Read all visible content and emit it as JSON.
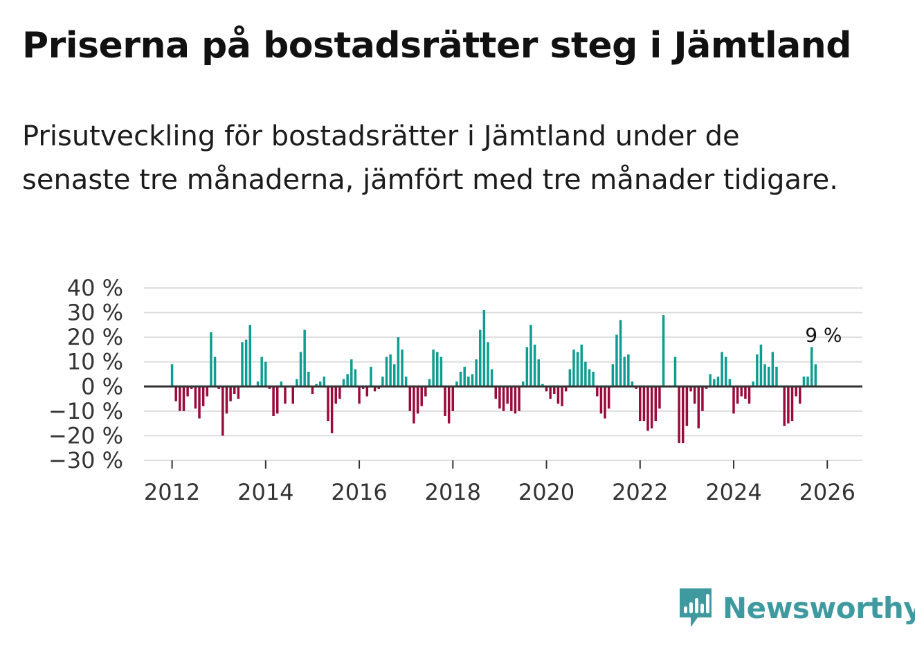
{
  "title": "Priserna på bostadsrätter steg i Jämtland",
  "subtitle": "Prisutveckling för bostadsrätter i Jämtland under de senaste tre månaderna, jämfört med tre månader tidigare.",
  "brand": {
    "name": "Newsworthy",
    "icon": "newsworthy-logo-icon",
    "color": "#3f9aa0"
  },
  "colors": {
    "positive": "#0e9d91",
    "negative": "#9c0a3c",
    "grid": "#dddddd",
    "zero": "#333333"
  },
  "chart_data": {
    "type": "bar",
    "title": "Priserna på bostadsrätter steg i Jämtland",
    "xlabel": "",
    "ylabel": "",
    "ylim": [
      -30,
      40
    ],
    "xlim": [
      2011.4,
      2026.75
    ],
    "grid": true,
    "y_ticks": [
      40,
      30,
      20,
      10,
      0,
      -10,
      -20,
      -30
    ],
    "y_tick_labels": [
      "40 %",
      "30 %",
      "20 %",
      "10 %",
      "0 %",
      "−10 %",
      "−20 %",
      "−30 %"
    ],
    "x_ticks": [
      2012,
      2014,
      2016,
      2018,
      2020,
      2022,
      2024,
      2026
    ],
    "x_tick_labels": [
      "2012",
      "2014",
      "2016",
      "2018",
      "2020",
      "2022",
      "2024",
      "2026"
    ],
    "start": 2012.0,
    "step": 0.08333,
    "values": [
      9,
      -6,
      -10,
      -10,
      -4,
      -1,
      -9,
      -13,
      -8,
      -4,
      22,
      12,
      -1,
      -20,
      -11,
      -6,
      -3,
      -5,
      18,
      19,
      25,
      0,
      2,
      12,
      10,
      -1,
      -12,
      -11,
      2,
      -7,
      0,
      -7,
      3,
      14,
      23,
      6,
      -3,
      1,
      2,
      4,
      -14,
      -19,
      -7,
      -5,
      3,
      5,
      11,
      7,
      -7,
      -1,
      -4,
      8,
      -2,
      -1,
      4,
      12,
      13,
      9,
      20,
      15,
      4,
      -10,
      -15,
      -11,
      -8,
      -4,
      3,
      15,
      14,
      12,
      -12,
      -15,
      -10,
      2,
      6,
      8,
      4,
      5,
      11,
      23,
      31,
      18,
      7,
      -5,
      -9,
      -10,
      -7,
      -10,
      -11,
      -10,
      2,
      16,
      25,
      17,
      11,
      1,
      -2,
      -5,
      -3,
      -7,
      -8,
      -2,
      7,
      15,
      14,
      17,
      10,
      7,
      6,
      -4,
      -11,
      -13,
      -9,
      9,
      21,
      27,
      12,
      13,
      2,
      -1,
      -14,
      -14,
      -18,
      -17,
      -14,
      -9,
      29,
      0,
      0,
      12,
      -23,
      -23,
      -16,
      -2,
      -7,
      -17,
      -10,
      -1,
      5,
      3,
      4,
      14,
      12,
      3,
      -11,
      -7,
      -4,
      -5,
      -7,
      2,
      13,
      17,
      9,
      8,
      14,
      8,
      0,
      -16,
      -15,
      -14,
      -4,
      -7,
      4,
      4,
      16,
      9
    ],
    "annotations": [
      {
        "text": "9 %",
        "x": 2025.92,
        "y": 16
      }
    ]
  }
}
